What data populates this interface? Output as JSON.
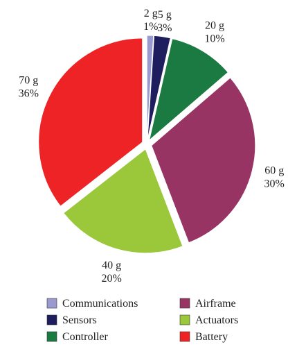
{
  "chart_data": {
    "type": "pie",
    "categories": [
      "Communications",
      "Sensors",
      "Controller",
      "Airframe",
      "Actuators",
      "Battery"
    ],
    "values": [
      2,
      5,
      20,
      60,
      40,
      70
    ],
    "value_labels": [
      "2 g",
      "5 g",
      "20 g",
      "60 g",
      "40 g",
      "70 g"
    ],
    "percent_labels": [
      "1%",
      "3%",
      "10%",
      "30%",
      "20%",
      "36%"
    ],
    "colors": [
      "#9a9ad0",
      "#1e1e5e",
      "#1a7a42",
      "#973463",
      "#9bc83a",
      "#ee2326"
    ],
    "legend": "bottom"
  }
}
